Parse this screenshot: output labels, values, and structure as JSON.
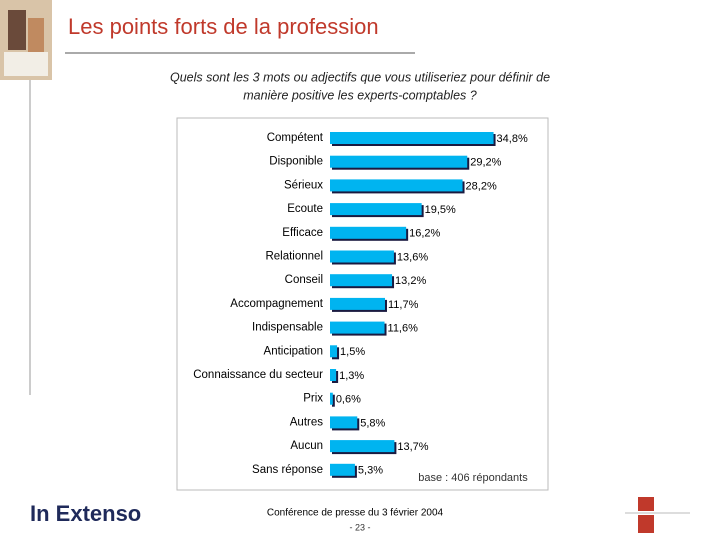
{
  "chart_data": {
    "type": "hbar",
    "title": "Les points forts de la profession",
    "subtitle": [
      "Quels sont les 3 mots ou adjectifs que vous utiliseriez pour définir de",
      "manière positive les experts-comptables ?"
    ],
    "categories": [
      "Compétent",
      "Disponible",
      "Sérieux",
      "Ecoute",
      "Efficace",
      "Relationnel",
      "Conseil",
      "Accompagnement",
      "Indispensable",
      "Anticipation",
      "Connaissance du secteur",
      "Prix",
      "Autres",
      "Aucun",
      "Sans réponse"
    ],
    "values": [
      34.8,
      29.2,
      28.2,
      19.5,
      16.2,
      13.6,
      13.2,
      11.7,
      11.6,
      1.5,
      1.3,
      0.6,
      5.8,
      13.7,
      5.3
    ],
    "value_labels": [
      "34,8%",
      "29,2%",
      "28,2%",
      "19,5%",
      "16,2%",
      "13,6%",
      "13,2%",
      "11,7%",
      "11,6%",
      "1,5%",
      "1,3%",
      "0,6%",
      "5,8%",
      "13,7%",
      "5,3%"
    ],
    "color": "#00b4f0",
    "annotation": "base : 406 répondants"
  },
  "footer": {
    "event": "Conférence de presse du 3 février 2004",
    "page": "- 23 -"
  },
  "logo": "In Extenso"
}
